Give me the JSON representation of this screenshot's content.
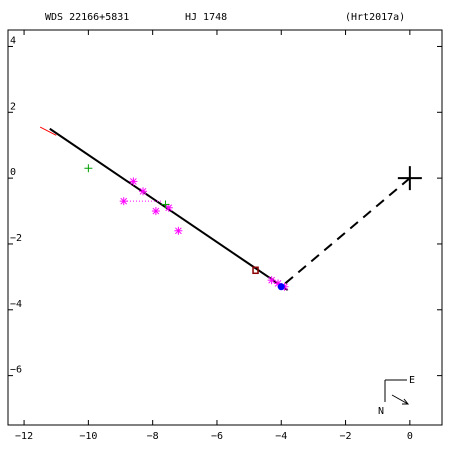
{
  "header": {
    "wds": "WDS 22166+5831",
    "name": "HJ 1748",
    "ref": "(Hrt2017a)"
  },
  "compass": {
    "east": "E",
    "north": "N"
  },
  "chart_data": {
    "type": "scatter",
    "xlim": [
      -12.5,
      1.0
    ],
    "ylim": [
      -7.5,
      4.5
    ],
    "x_ticks": [
      -12,
      -10,
      -8,
      -6,
      -4,
      -2,
      0
    ],
    "y_ticks": [
      4,
      2,
      0,
      -2,
      -4,
      -6
    ],
    "x_tick_labels": [
      "−12",
      "−10",
      "−8",
      "−6",
      "−4",
      "−2",
      "0"
    ],
    "y_tick_labels": [
      "4",
      "2",
      "0",
      "−2",
      "−4",
      "−6"
    ],
    "grid": false,
    "primary_star": [
      0,
      0
    ],
    "orbit_line": {
      "from": [
        -11.2,
        1.5
      ],
      "to": [
        -3.8,
        -3.4
      ]
    },
    "orbit_line_red": {
      "from": [
        -11.5,
        1.55
      ],
      "to": [
        -11.0,
        1.3
      ]
    },
    "node_line": {
      "from": [
        0,
        0
      ],
      "to": [
        -4.0,
        -3.3
      ]
    },
    "residual_dotted": {
      "from": [
        -8.8,
        -0.7
      ],
      "to": [
        -7.7,
        -0.7
      ]
    },
    "series": [
      {
        "marker": "asterisk",
        "color": "#ff00ff",
        "points": [
          [
            -8.6,
            -0.1
          ],
          [
            -8.3,
            -0.4
          ],
          [
            -8.9,
            -0.7
          ],
          [
            -7.9,
            -1.0
          ],
          [
            -7.5,
            -0.9
          ],
          [
            -7.2,
            -1.6
          ],
          [
            -4.3,
            -3.1
          ],
          [
            -4.1,
            -3.2
          ],
          [
            -3.9,
            -3.3
          ]
        ]
      },
      {
        "marker": "plus",
        "color": "#00a000",
        "points": [
          [
            -10.0,
            0.3
          ],
          [
            -7.6,
            -0.8
          ]
        ]
      },
      {
        "marker": "square",
        "color": "#8b0000",
        "points": [
          [
            -4.8,
            -2.8
          ]
        ]
      },
      {
        "marker": "circle",
        "color": "#0000ff",
        "points": [
          [
            -4.0,
            -3.3
          ]
        ]
      }
    ]
  }
}
